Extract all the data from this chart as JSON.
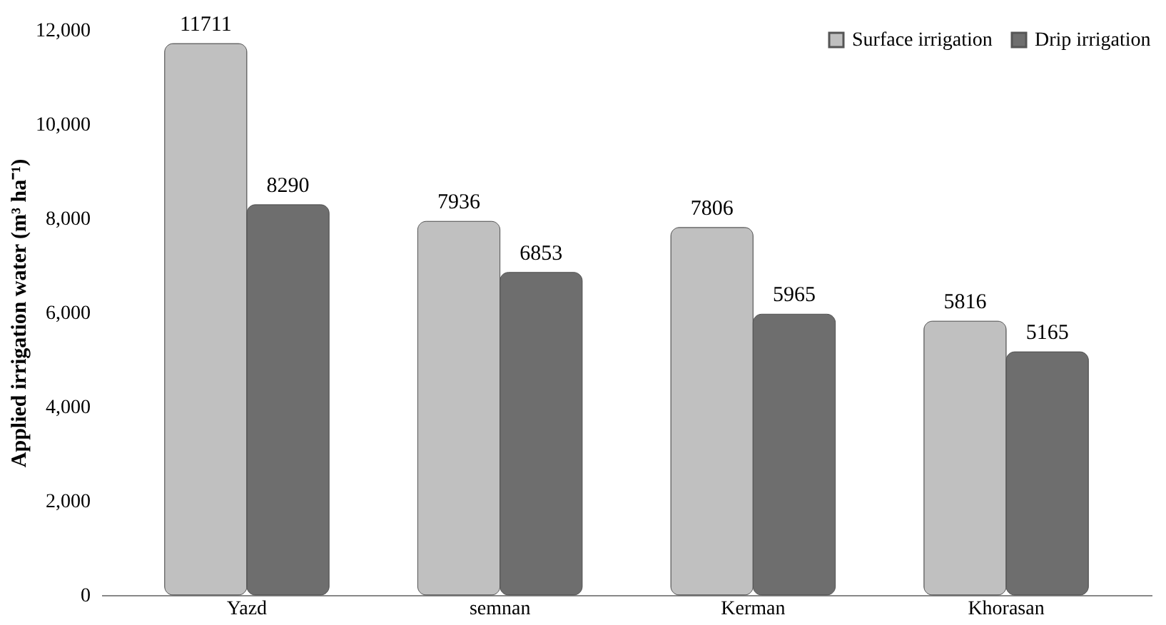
{
  "chart_data": {
    "type": "bar",
    "ylabel": "Applied irrigation water (m³ ha⁻¹)",
    "categories": [
      "Yazd",
      "semnan",
      "Kerman",
      "Khorasan"
    ],
    "series": [
      {
        "name": "Surface irrigation",
        "color": "#c0c0c0",
        "values": [
          11711,
          7936,
          7806,
          5816
        ]
      },
      {
        "name": "Drip irrigation",
        "color": "#6e6e6e",
        "values": [
          8290,
          6853,
          5965,
          5165
        ]
      }
    ],
    "ylim": [
      0,
      12000
    ],
    "yticks": [
      {
        "value": 0,
        "label": "0"
      },
      {
        "value": 2000,
        "label": "2,000"
      },
      {
        "value": 4000,
        "label": "4,000"
      },
      {
        "value": 6000,
        "label": "6,000"
      },
      {
        "value": 8000,
        "label": "8,000"
      },
      {
        "value": 10000,
        "label": "10,000"
      },
      {
        "value": 12000,
        "label": "12,000"
      }
    ],
    "data_labels": true,
    "legend": "top right",
    "grid": false
  }
}
